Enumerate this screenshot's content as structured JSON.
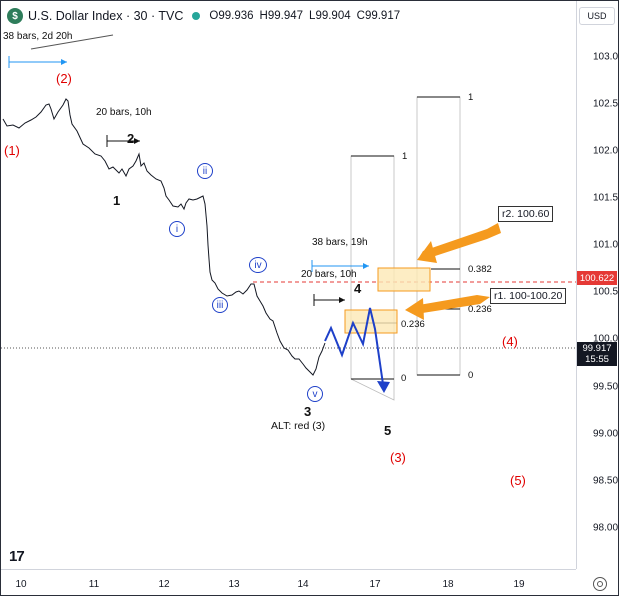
{
  "header": {
    "logo_letter": "$",
    "title": "U.S. Dollar Index · 30 · TVC",
    "ohlc": [
      {
        "key": "O",
        "value": "99.936"
      },
      {
        "key": "H",
        "value": "99.947"
      },
      {
        "key": "L",
        "value": "99.904"
      },
      {
        "key": "C",
        "value": "99.917"
      }
    ]
  },
  "price_axis": {
    "currency": "USD",
    "ticks": [
      "103.000",
      "102.500",
      "102.000",
      "101.500",
      "101.000",
      "100.500",
      "100.000",
      "99.500",
      "99.000",
      "98.500",
      "98.000"
    ],
    "price_label": "100.622",
    "current_price": "99.917",
    "countdown": "15:55"
  },
  "time_axis": {
    "ticks": [
      "10",
      "11",
      "12",
      "13",
      "14",
      "17",
      "18",
      "19"
    ]
  },
  "annotations": {
    "bars_top_left": "38 bars, 2d 20h",
    "bars_2": "20 bars, 10h",
    "bars_38": "38 bars, 19h",
    "bars_20": "20 bars, 10h",
    "red_1": "(1)",
    "red_2": "(2)",
    "red_3": "(3)",
    "red_4": "(4)",
    "red_5": "(5)",
    "black_1": "1",
    "black_2": "2",
    "black_3": "3",
    "black_4": "4",
    "black_5": "5",
    "circ_i": "i",
    "circ_ii": "ii",
    "circ_iii": "iii",
    "circ_iv": "iv",
    "circ_v": "v",
    "alt": "ALT: red (3)",
    "r2": "r2. 100.60",
    "r1": "r1. 100-100.20",
    "fib_1a": "1",
    "fib_1b": "1",
    "fib_0382": "0.382",
    "fib_0236a": "0.236",
    "fib_0236b": "0.236",
    "fib_0a": "0",
    "fib_0b": "0"
  },
  "colors": {
    "wave_blue": "#1e40c9",
    "red_label": "#e00000",
    "resistance_line": "#e53935",
    "arrow_orange": "#f59a1e",
    "zone_fill": "#fde9b5"
  },
  "icons": {
    "brand_logo": "tradingview-logo",
    "settings": "gear-icon"
  }
}
